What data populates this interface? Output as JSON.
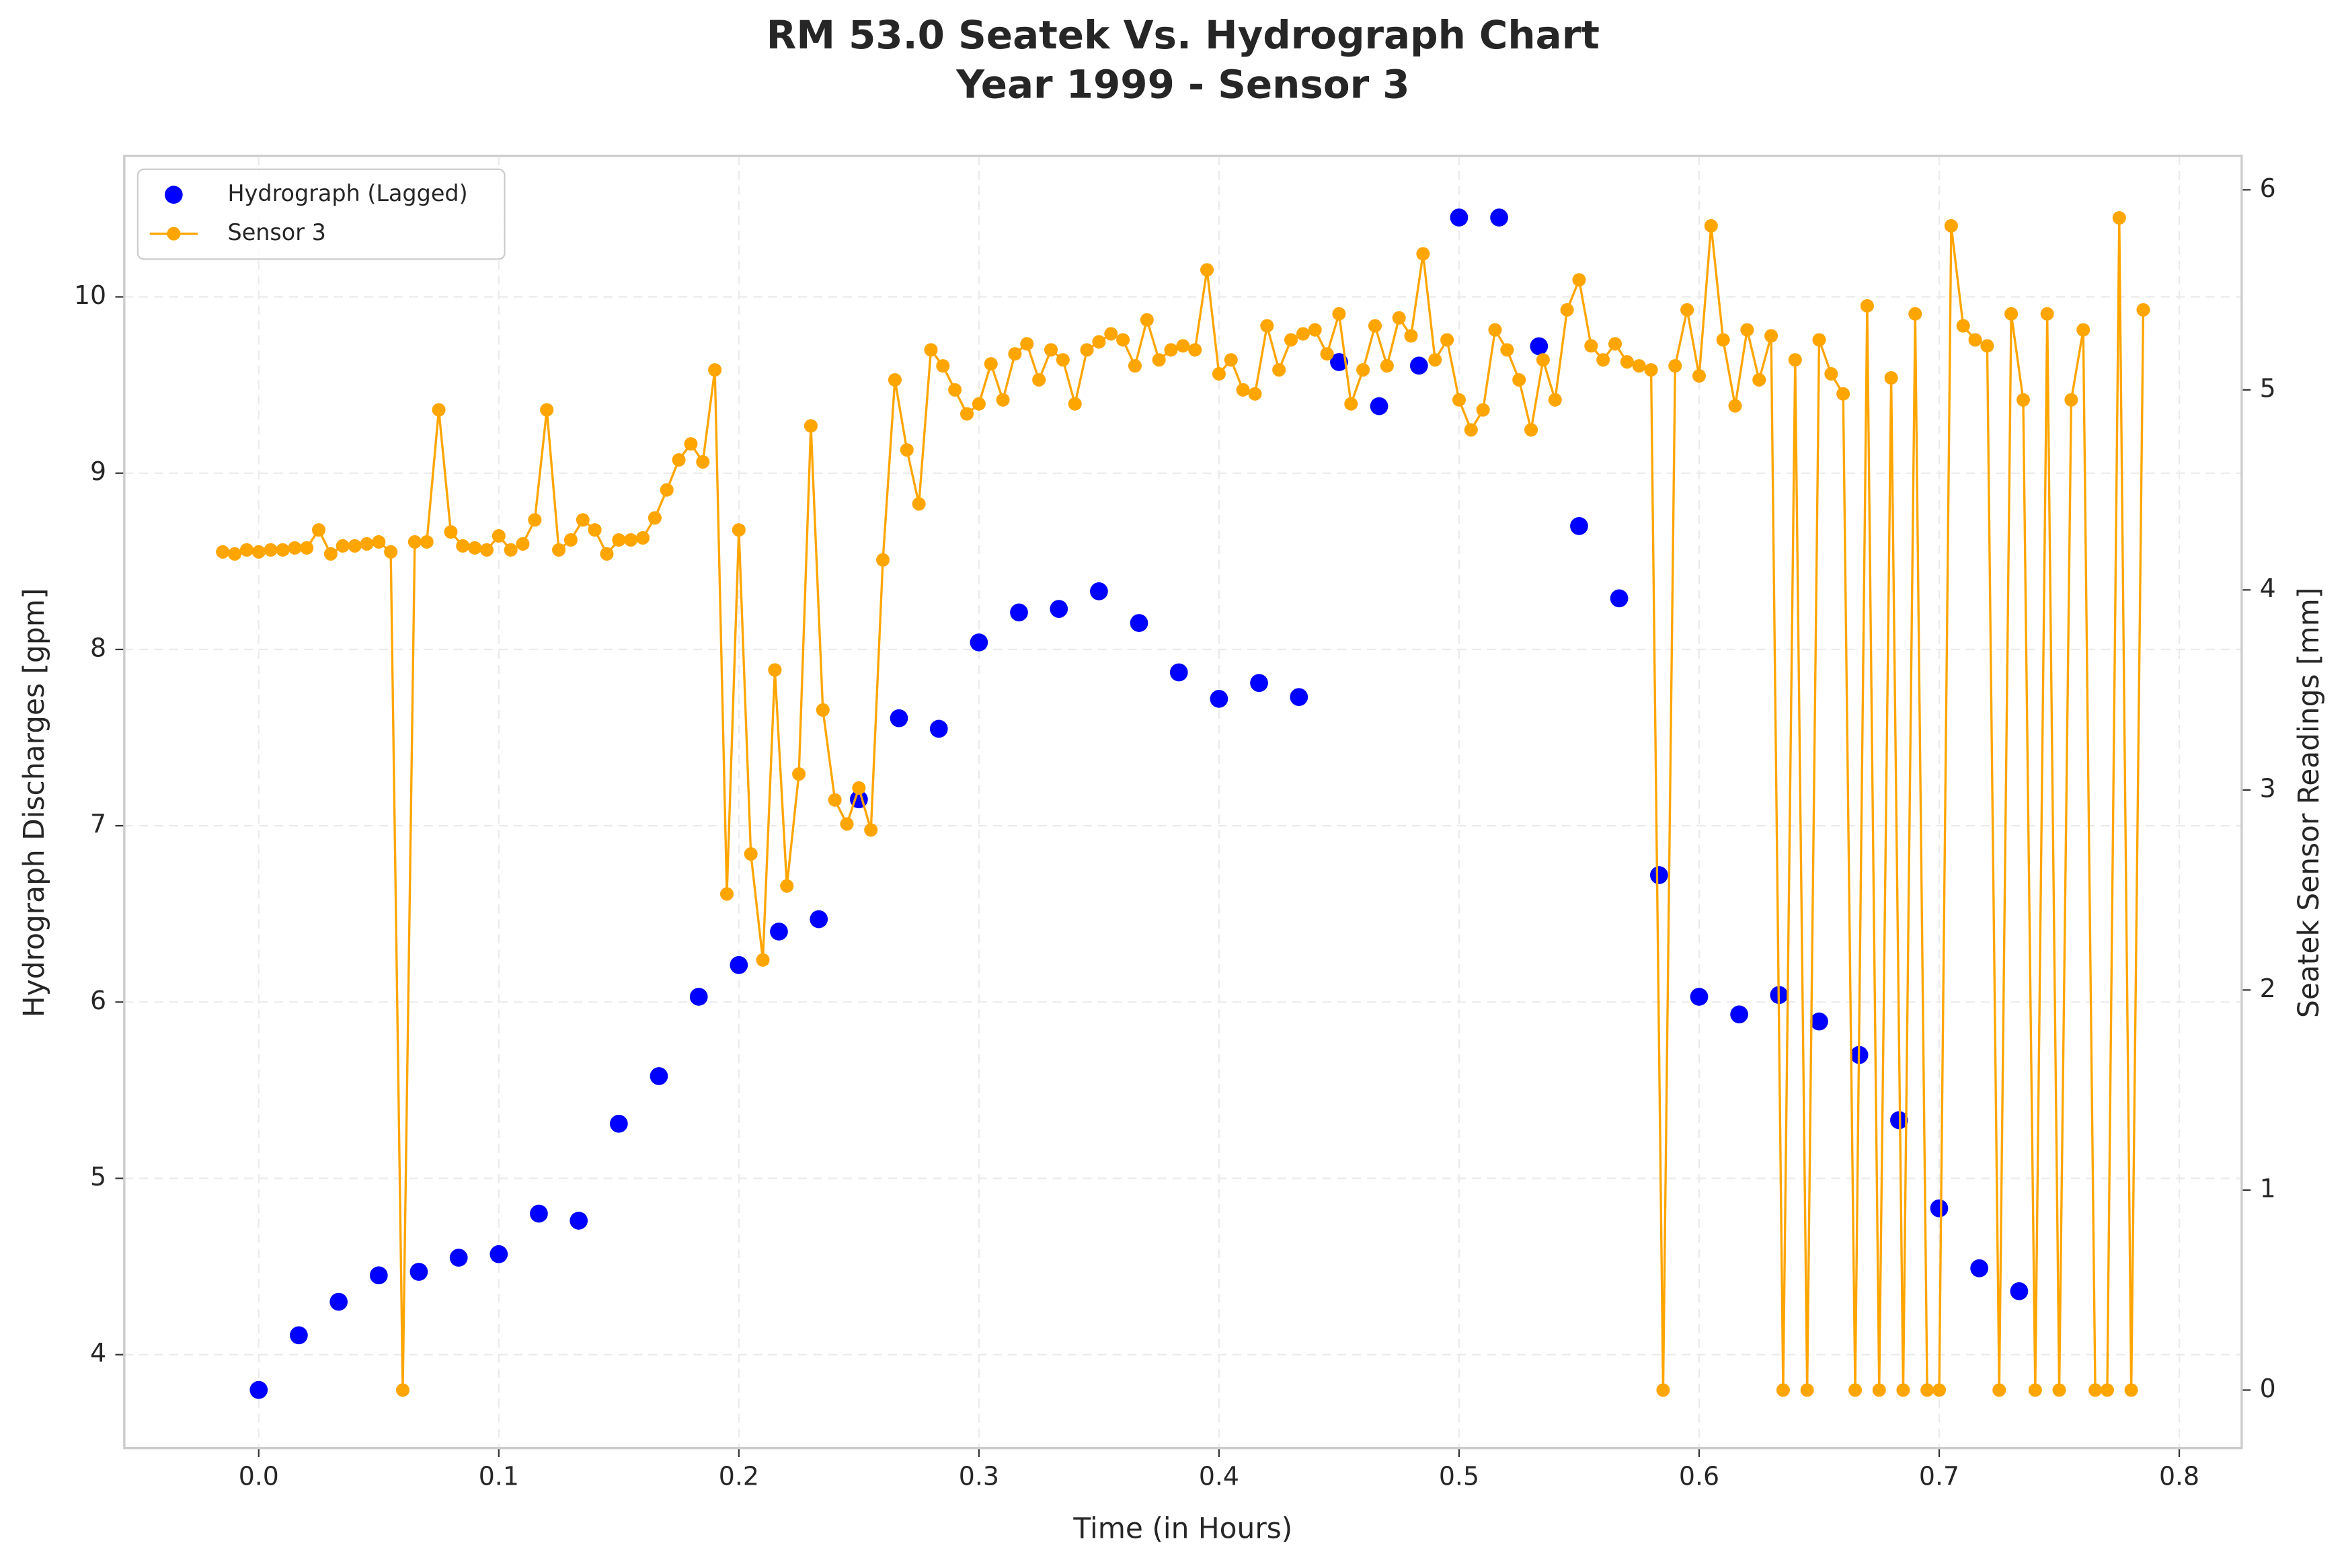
{
  "chart_data": {
    "type": "line",
    "title": "RM 53.0 Seatek Vs. Hydrograph Chart",
    "subtitle": "Year 1999 - Sensor 3",
    "x_label": "Time (in Hours)",
    "y_label": "Hydrograph Discharges [gpm]",
    "y2_label": "Seatek Sensor Readings [mm]",
    "xlim": [
      -0.056,
      0.826
    ],
    "xticks": [
      {
        "value": 0,
        "label": "0.0"
      },
      0.1,
      0.2,
      0.3,
      0.4,
      0.5,
      0.6,
      0.7,
      0.8
    ],
    "ylim": [
      3.47,
      10.8
    ],
    "yticks": [
      4,
      5,
      6,
      7,
      8,
      9,
      10
    ],
    "y2lim": [
      -0.29,
      6.17
    ],
    "y2ticks": [
      0,
      1,
      2,
      3,
      4,
      5,
      6
    ],
    "grid": true,
    "legend": "upper-left",
    "series": [
      {
        "name": "Hydrograph (Lagged)",
        "type": "scatter",
        "color": "#0000ff",
        "x": [
          0,
          0.0167,
          0.0333,
          0.05,
          0.0667,
          0.0833,
          0.1,
          0.1167,
          0.1333,
          0.15,
          0.1667,
          0.1833,
          0.2,
          0.2167,
          0.2333,
          0.25,
          0.2667,
          0.2833,
          0.3,
          0.3167,
          0.3333,
          0.35,
          0.3667,
          0.3833,
          0.4,
          0.4167,
          0.4333,
          0.45,
          0.4667,
          0.4833,
          0.5,
          0.5167,
          0.5333,
          0.55,
          0.5667,
          0.5833,
          0.6,
          0.6167,
          0.6333,
          0.65,
          0.6667,
          0.6833,
          0.7,
          0.7167,
          0.7333
        ],
        "values": [
          3.8,
          4.11,
          4.3,
          4.45,
          4.47,
          4.55,
          4.57,
          4.8,
          4.76,
          5.31,
          5.58,
          6.03,
          6.21,
          6.4,
          6.47,
          7.15,
          7.61,
          7.55,
          8.04,
          8.21,
          8.23,
          8.33,
          8.15,
          7.87,
          7.72,
          7.81,
          7.73,
          9.63,
          9.38,
          9.61,
          10.45,
          10.45,
          9.72,
          8.7,
          8.29,
          6.72,
          6.03,
          5.93,
          6.04,
          5.89,
          5.7,
          5.33,
          4.83,
          4.49,
          4.36
        ]
      },
      {
        "name": "Sensor 3",
        "type": "line",
        "axis": "y2",
        "color": "#ffa500",
        "x": [
          -0.015,
          -0.01,
          -0.005,
          0,
          0.005,
          0.01,
          0.015,
          0.02,
          0.025,
          0.03,
          0.035,
          0.04,
          0.045,
          0.05,
          0.055,
          0.06,
          0.065,
          0.07,
          0.075,
          0.08,
          0.085,
          0.09,
          0.095,
          0.1,
          0.105,
          0.11,
          0.115,
          0.12,
          0.125,
          0.13,
          0.135,
          0.14,
          0.145,
          0.15,
          0.155,
          0.16,
          0.165,
          0.17,
          0.175,
          0.18,
          0.185,
          0.19,
          0.195,
          0.2,
          0.205,
          0.21,
          0.215,
          0.22,
          0.225,
          0.23,
          0.235,
          0.24,
          0.245,
          0.25,
          0.255,
          0.26,
          0.265,
          0.27,
          0.275,
          0.28,
          0.285,
          0.29,
          0.295,
          0.3,
          0.305,
          0.31,
          0.315,
          0.32,
          0.325,
          0.33,
          0.335,
          0.34,
          0.345,
          0.35,
          0.355,
          0.36,
          0.365,
          0.37,
          0.375,
          0.38,
          0.385,
          0.39,
          0.395,
          0.4,
          0.405,
          0.41,
          0.415,
          0.42,
          0.425,
          0.43,
          0.435,
          0.44,
          0.445,
          0.45,
          0.455,
          0.46,
          0.465,
          0.47,
          0.475,
          0.48,
          0.485,
          0.49,
          0.495,
          0.5,
          0.505,
          0.51,
          0.515,
          0.52,
          0.525,
          0.53,
          0.535,
          0.54,
          0.545,
          0.55,
          0.555,
          0.56,
          0.565,
          0.57,
          0.575,
          0.58,
          0.585,
          0.59,
          0.595,
          0.6,
          0.605,
          0.61,
          0.615,
          0.62,
          0.625,
          0.63,
          0.635,
          0.64,
          0.645,
          0.65,
          0.655,
          0.66,
          0.665,
          0.67,
          0.675,
          0.68,
          0.685,
          0.69,
          0.695,
          0.7,
          0.705,
          0.71,
          0.715,
          0.72,
          0.725,
          0.73,
          0.735,
          0.74,
          0.745,
          0.75,
          0.755,
          0.76,
          0.765,
          0.77,
          0.775,
          0.78,
          0.785
        ],
        "values": [
          4.19,
          4.18,
          4.2,
          4.19,
          4.2,
          4.2,
          4.21,
          4.21,
          4.3,
          4.18,
          4.22,
          4.22,
          4.23,
          4.24,
          4.19,
          0,
          4.24,
          4.24,
          4.9,
          4.29,
          4.22,
          4.21,
          4.2,
          4.27,
          4.2,
          4.23,
          4.35,
          4.9,
          4.2,
          4.25,
          4.35,
          4.3,
          4.18,
          4.25,
          4.25,
          4.26,
          4.36,
          4.5,
          4.65,
          4.73,
          4.64,
          5.1,
          2.48,
          4.3,
          2.68,
          2.15,
          3.6,
          2.52,
          3.08,
          4.82,
          3.4,
          2.95,
          2.83,
          3.01,
          2.8,
          4.15,
          5.05,
          4.7,
          4.43,
          5.2,
          5.12,
          5.0,
          4.88,
          4.93,
          5.13,
          4.95,
          5.18,
          5.23,
          5.05,
          5.2,
          5.15,
          4.93,
          5.2,
          5.24,
          5.28,
          5.25,
          5.12,
          5.35,
          5.15,
          5.2,
          5.22,
          5.2,
          5.6,
          5.08,
          5.15,
          5.0,
          4.98,
          5.32,
          5.1,
          5.25,
          5.28,
          5.3,
          5.18,
          5.38,
          4.93,
          5.1,
          5.32,
          5.12,
          5.36,
          5.27,
          5.68,
          5.15,
          5.25,
          4.95,
          4.8,
          4.9,
          5.3,
          5.2,
          5.05,
          4.8,
          5.15,
          4.95,
          5.4,
          5.55,
          5.22,
          5.15,
          5.23,
          5.14,
          5.12,
          5.1,
          0,
          5.12,
          5.4,
          5.07,
          5.82,
          5.25,
          4.92,
          5.3,
          5.05,
          5.27,
          0,
          5.15,
          0,
          5.25,
          5.08,
          4.98,
          0,
          5.42,
          0,
          5.06,
          0,
          5.38,
          0,
          0,
          5.82,
          5.32,
          5.25,
          5.22,
          0,
          5.38,
          4.95,
          0,
          5.38,
          0,
          4.95,
          5.3,
          0,
          0,
          5.86,
          0,
          5.4
        ]
      }
    ]
  }
}
